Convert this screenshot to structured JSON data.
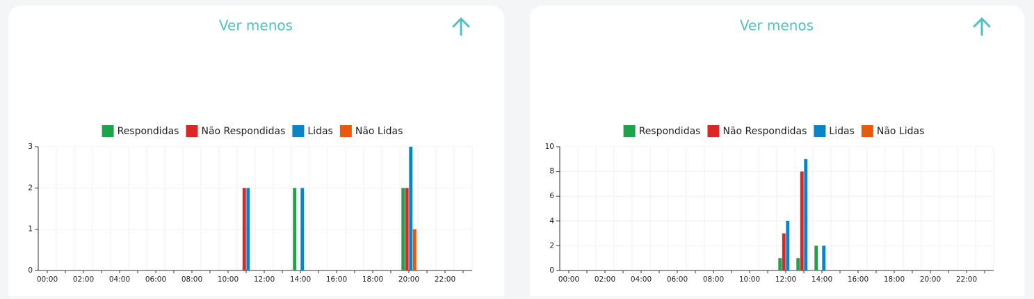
{
  "buttons": [
    "Ver menos",
    "Ver menos"
  ],
  "chart_data": [
    {
      "type": "bar",
      "categories": [
        "00:00",
        null,
        "02:00",
        null,
        "04:00",
        null,
        "06:00",
        null,
        "08:00",
        null,
        "10:00",
        null,
        "12:00",
        null,
        "14:00",
        null,
        "16:00",
        null,
        "18:00",
        null,
        "20:00",
        null,
        "22:00",
        null
      ],
      "series": [
        {
          "name": "Respondidas",
          "color": "#1fa34a",
          "values": [
            0,
            0,
            0,
            0,
            0,
            0,
            0,
            0,
            0,
            0,
            0,
            0,
            0,
            0,
            2,
            0,
            0,
            0,
            0,
            0,
            2,
            0,
            0,
            0
          ]
        },
        {
          "name": "Não Respondidas",
          "color": "#dc2626",
          "values": [
            0,
            0,
            0,
            0,
            0,
            0,
            0,
            0,
            0,
            0,
            0,
            2,
            0,
            0,
            0,
            0,
            0,
            0,
            0,
            0,
            2,
            0,
            0,
            0
          ]
        },
        {
          "name": "Lidas",
          "color": "#0a84c6",
          "values": [
            0,
            0,
            0,
            0,
            0,
            0,
            0,
            0,
            0,
            0,
            0,
            2,
            0,
            0,
            2,
            0,
            0,
            0,
            0,
            0,
            3,
            0,
            0,
            0
          ]
        },
        {
          "name": "Não Lidas",
          "color": "#ea580c",
          "values": [
            0,
            0,
            0,
            0,
            0,
            0,
            0,
            0,
            0,
            0,
            0,
            0,
            0,
            0,
            0,
            0,
            0,
            0,
            0,
            0,
            1,
            0,
            0,
            0
          ]
        }
      ],
      "ylim": [
        0,
        3
      ],
      "yticks": [
        0,
        1,
        2,
        3
      ],
      "grid": true,
      "legend": "top"
    },
    {
      "type": "bar",
      "categories": [
        "00:00",
        null,
        "02:00",
        null,
        "04:00",
        null,
        "06:00",
        null,
        "08:00",
        null,
        "10:00",
        null,
        "12:00",
        null,
        "14:00",
        null,
        "16:00",
        null,
        "18:00",
        null,
        "20:00",
        null,
        "22:00",
        null
      ],
      "series": [
        {
          "name": "Respondidas",
          "color": "#1fa34a",
          "values": [
            0,
            0,
            0,
            0,
            0,
            0,
            0,
            0,
            0,
            0,
            0,
            0,
            1,
            1,
            2,
            0,
            0,
            0,
            0,
            0,
            0,
            0,
            0,
            0
          ]
        },
        {
          "name": "Não Respondidas",
          "color": "#dc2626",
          "values": [
            0,
            0,
            0,
            0,
            0,
            0,
            0,
            0,
            0,
            0,
            0,
            0,
            3,
            8,
            0,
            0,
            0,
            0,
            0,
            0,
            0,
            0,
            0,
            0
          ]
        },
        {
          "name": "Lidas",
          "color": "#0a84c6",
          "values": [
            0,
            0,
            0,
            0,
            0,
            0,
            0,
            0,
            0,
            0,
            0,
            0,
            4,
            9,
            2,
            0,
            0,
            0,
            0,
            0,
            0,
            0,
            0,
            0
          ]
        },
        {
          "name": "Não Lidas",
          "color": "#ea580c",
          "values": [
            0,
            0,
            0,
            0,
            0,
            0,
            0,
            0,
            0,
            0,
            0,
            0,
            0,
            0,
            0,
            0,
            0,
            0,
            0,
            0,
            0,
            0,
            0,
            0
          ]
        }
      ],
      "ylim": [
        0,
        10
      ],
      "yticks": [
        0,
        2,
        4,
        6,
        8,
        10
      ],
      "grid": true,
      "legend": "top"
    }
  ]
}
